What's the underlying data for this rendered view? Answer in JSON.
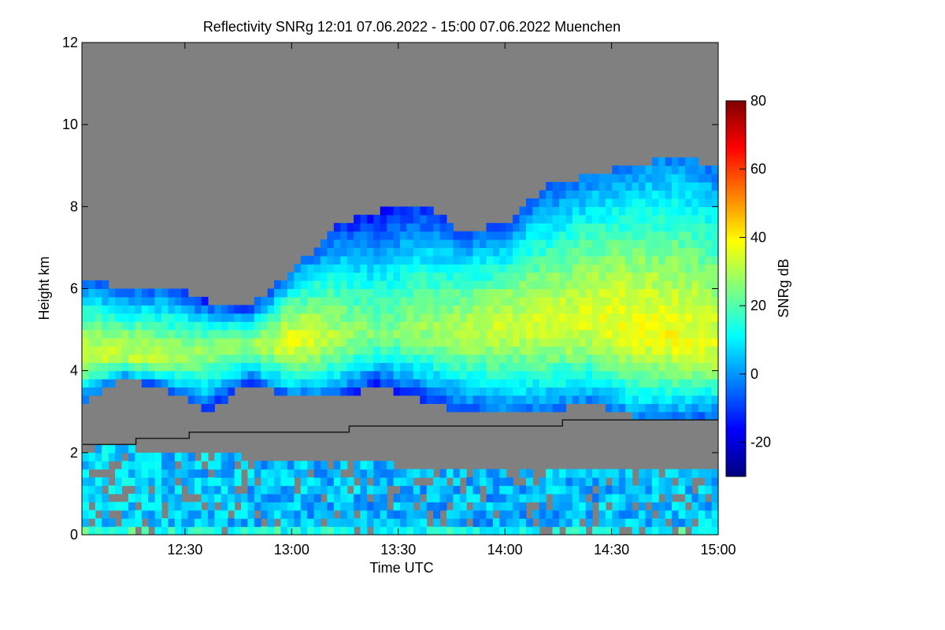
{
  "chart_data": {
    "type": "heatmap",
    "title": "Reflectivity SNRg   12:01 07.06.2022 - 15:00 07.06.2022 Muenchen",
    "xlabel": "Time UTC",
    "ylabel": "Height km",
    "colorbar_label": "SNRg dB",
    "xlim": [
      12.0167,
      15.0
    ],
    "ylim": [
      0,
      12
    ],
    "x_ticks": [
      {
        "value": 12.5,
        "label": "12:30"
      },
      {
        "value": 13.0,
        "label": "13:00"
      },
      {
        "value": 13.5,
        "label": "13:30"
      },
      {
        "value": 14.0,
        "label": "14:00"
      },
      {
        "value": 14.5,
        "label": "14:30"
      },
      {
        "value": 15.0,
        "label": "15:00"
      }
    ],
    "y_ticks": [
      {
        "value": 0,
        "label": "0"
      },
      {
        "value": 2,
        "label": "2"
      },
      {
        "value": 4,
        "label": "4"
      },
      {
        "value": 6,
        "label": "6"
      },
      {
        "value": 8,
        "label": "8"
      },
      {
        "value": 10,
        "label": "10"
      },
      {
        "value": 12,
        "label": "12"
      }
    ],
    "colorbar_range": [
      -30,
      80
    ],
    "colorbar_ticks": [
      {
        "value": -20,
        "label": "-20"
      },
      {
        "value": 0,
        "label": "0"
      },
      {
        "value": 20,
        "label": "20"
      },
      {
        "value": 40,
        "label": "40"
      },
      {
        "value": 60,
        "label": "60"
      },
      {
        "value": 80,
        "label": "80"
      }
    ],
    "colormap": [
      "#00007f",
      "#0000ff",
      "#007fff",
      "#00ffff",
      "#7fff7f",
      "#ffff00",
      "#ff7f00",
      "#ff0000",
      "#7f0000"
    ],
    "background_color": "#808080",
    "cloud_layer": {
      "time": [
        12.02,
        12.2,
        12.4,
        12.6,
        12.8,
        13.0,
        13.2,
        13.4,
        13.6,
        13.8,
        14.0,
        14.2,
        14.4,
        14.6,
        14.8,
        15.0
      ],
      "top_km": [
        6.3,
        6.0,
        6.1,
        5.7,
        5.6,
        6.4,
        7.5,
        7.9,
        8.1,
        7.4,
        7.6,
        8.5,
        8.8,
        9.0,
        9.2,
        9.0
      ],
      "base_km": [
        3.2,
        3.8,
        3.6,
        3.0,
        3.7,
        3.4,
        3.3,
        3.6,
        3.3,
        3.0,
        2.9,
        3.0,
        3.2,
        2.9,
        2.9,
        2.9
      ],
      "core_km": [
        4.4,
        4.4,
        4.3,
        4.5,
        4.6,
        4.7,
        4.8,
        4.9,
        5.0,
        5.0,
        5.1,
        5.1,
        5.2,
        5.0,
        4.8,
        4.6
      ],
      "max_snr_db": [
        32,
        33,
        30,
        28,
        27,
        37,
        30,
        24,
        27,
        31,
        33,
        34,
        36,
        38,
        38,
        35
      ]
    },
    "boundary_layer": {
      "time": [
        12.02,
        12.5,
        13.0,
        13.5,
        14.0,
        14.5,
        15.0
      ],
      "top_km": [
        2.2,
        2.0,
        1.8,
        1.7,
        1.6,
        1.5,
        1.5
      ],
      "mean_snr_db": [
        8,
        5,
        4,
        3,
        3,
        4,
        5
      ]
    },
    "reference_line": {
      "time": [
        12.02,
        12.27,
        12.27,
        12.52,
        12.52,
        13.27,
        13.27,
        14.27,
        14.27,
        15.0
      ],
      "height_km": [
        2.2,
        2.2,
        2.35,
        2.35,
        2.5,
        2.5,
        2.65,
        2.65,
        2.8,
        2.8
      ]
    }
  }
}
